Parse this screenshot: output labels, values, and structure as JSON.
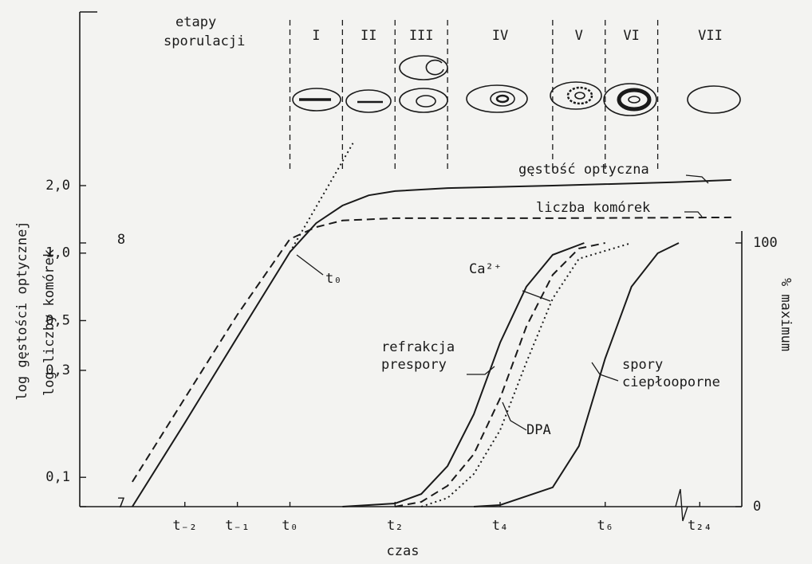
{
  "chart_data": {
    "type": "line",
    "xlabel": "czas",
    "ylabel": "log gęstości optycznej",
    "y2label": "log liczby komórek",
    "y3label": "% maximum",
    "xlim": [
      -4,
      24.8
    ],
    "xbreak": [
      7.4,
      23.6
    ],
    "xticks": [
      {
        "value": -2,
        "label": "t₋₂"
      },
      {
        "value": -1,
        "label": "t₋₁"
      },
      {
        "value": 0,
        "label": "t₀"
      },
      {
        "value": 2,
        "label": "t₂"
      },
      {
        "value": 4,
        "label": "t₄"
      },
      {
        "value": 6,
        "label": "t₆"
      },
      {
        "value": 24,
        "label": "t₂₄"
      }
    ],
    "ylim": [
      0.074,
      11.9
    ],
    "ylog": true,
    "yticks": [
      {
        "value": 0.1,
        "label": "0,1"
      },
      {
        "value": 0.3,
        "label": "0,3"
      },
      {
        "value": 0.5,
        "label": "0,5"
      },
      {
        "value": 1.0,
        "label": "1,0"
      },
      {
        "value": 2.0,
        "label": "2,0"
      }
    ],
    "y2lim": [
      7,
      8.876
    ],
    "y2ticks": [
      7,
      8
    ],
    "y3lim": [
      0,
      187.6
    ],
    "y3ticks": [
      0,
      100
    ],
    "stages": {
      "label": [
        "etapy",
        "sporulacji"
      ],
      "boundaries": [
        0,
        1,
        2,
        3,
        5,
        6,
        7
      ],
      "names": [
        "I",
        "II",
        "III",
        "IV",
        "V",
        "VI",
        "VII"
      ]
    },
    "annotations": [
      "t₀"
    ],
    "series": [
      {
        "name": "gęstość optyczna",
        "color": "#1a1a1a",
        "dash": "solid",
        "axis": "y",
        "x": [
          -3,
          -2,
          -1,
          0,
          0.5,
          1,
          1.5,
          2,
          3,
          5,
          7.3,
          24.6
        ],
        "values": [
          0.074,
          0.175,
          0.422,
          1.01,
          1.36,
          1.63,
          1.81,
          1.89,
          1.95,
          2.0,
          2.07,
          2.12
        ]
      },
      {
        "color": "#1a1a1a",
        "dash": "dotted",
        "axis": "y",
        "x": [
          0,
          1.2
        ],
        "values": [
          1.01,
          3.09
        ]
      },
      {
        "name": "liczba komórek",
        "color": "#1a1a1a",
        "dash": "dashed",
        "axis": "y2",
        "x": [
          -3,
          -2,
          -1,
          0,
          0.5,
          1,
          2,
          5,
          24.6
        ],
        "values": [
          7.094,
          7.411,
          7.728,
          8.015,
          8.06,
          8.085,
          8.094,
          8.094,
          8.097
        ]
      },
      {
        "name": "refrakcja prespory",
        "color": "#1a1a1a",
        "dash": "solid",
        "axis": "y3",
        "x": [
          1,
          2,
          2.5,
          3,
          3.5,
          4,
          4.5,
          5,
          5.6
        ],
        "values": [
          0,
          1.2,
          4.8,
          15.4,
          35,
          62.2,
          83.4,
          95.5,
          100
        ]
      },
      {
        "name": "Ca²⁺",
        "color": "#1a1a1a",
        "dash": "dashed",
        "axis": "y3",
        "x": [
          2,
          2.5,
          3,
          3.5,
          4,
          4.5,
          5,
          5.5,
          6
        ],
        "values": [
          0,
          1.8,
          7.9,
          19.9,
          41.1,
          68.3,
          87.9,
          97.9,
          100
        ]
      },
      {
        "name": "DPA",
        "color": "#1a1a1a",
        "dash": "dotted",
        "axis": "y3",
        "x": [
          2.5,
          3,
          3.5,
          4,
          4.5,
          5,
          5.5,
          6.5
        ],
        "values": [
          0,
          3.3,
          12.4,
          29,
          54.7,
          78.9,
          94,
          100
        ]
      },
      {
        "name": "spory ciepłooporne",
        "color": "#1a1a1a",
        "dash": "solid",
        "axis": "y3",
        "x": [
          3.5,
          4,
          5,
          5.5,
          6,
          6.5,
          7,
          7.4
        ],
        "values": [
          0,
          0.6,
          7.3,
          23,
          56.2,
          83.4,
          96.1,
          100
        ]
      }
    ]
  }
}
